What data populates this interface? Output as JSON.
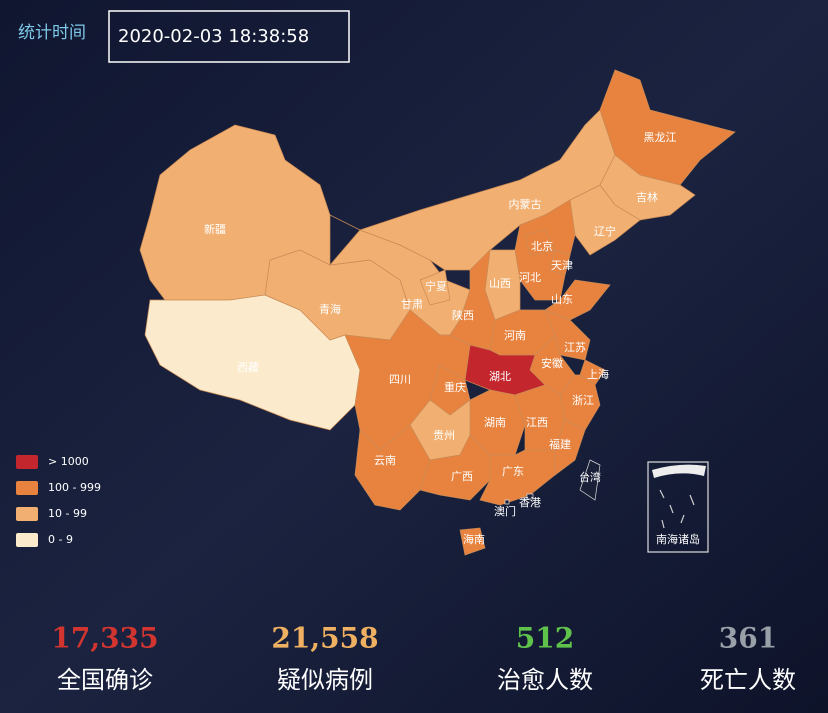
{
  "header": {
    "label": "统计时间",
    "timestamp": "2020-02-03 18:38:58"
  },
  "legend": [
    {
      "label": "> 1000",
      "color": "#c4262e"
    },
    {
      "label": "100 - 999",
      "color": "#e8833f"
    },
    {
      "label": "10 - 99",
      "color": "#f1b072"
    },
    {
      "label": "0 - 9",
      "color": "#fbeacb"
    }
  ],
  "provinces": [
    {
      "name": "新疆",
      "level": 2
    },
    {
      "name": "西藏",
      "level": 3
    },
    {
      "name": "青海",
      "level": 2
    },
    {
      "name": "甘肃",
      "level": 2
    },
    {
      "name": "宁夏",
      "level": 2
    },
    {
      "name": "内蒙古",
      "level": 2
    },
    {
      "name": "黑龙江",
      "level": 1
    },
    {
      "name": "吉林",
      "level": 2
    },
    {
      "name": "辽宁",
      "level": 2
    },
    {
      "name": "河北",
      "level": 1
    },
    {
      "name": "北京",
      "level": 1
    },
    {
      "name": "天津",
      "level": 1
    },
    {
      "name": "山西",
      "level": 2
    },
    {
      "name": "山东",
      "level": 1
    },
    {
      "name": "陕西",
      "level": 1
    },
    {
      "name": "河南",
      "level": 1
    },
    {
      "name": "江苏",
      "level": 1
    },
    {
      "name": "安徽",
      "level": 1
    },
    {
      "name": "上海",
      "level": 1
    },
    {
      "name": "浙江",
      "level": 1
    },
    {
      "name": "湖北",
      "level": 0
    },
    {
      "name": "四川",
      "level": 1
    },
    {
      "name": "重庆",
      "level": 1
    },
    {
      "name": "湖南",
      "level": 1
    },
    {
      "name": "江西",
      "level": 1
    },
    {
      "name": "福建",
      "level": 1
    },
    {
      "name": "贵州",
      "level": 2
    },
    {
      "name": "云南",
      "level": 1
    },
    {
      "name": "广西",
      "level": 1
    },
    {
      "name": "广东",
      "level": 1
    },
    {
      "name": "海南",
      "level": 1
    },
    {
      "name": "香港",
      "level": null
    },
    {
      "name": "澳门",
      "level": null
    },
    {
      "name": "台湾",
      "level": null
    }
  ],
  "inset_label": "南海诸岛",
  "stats": [
    {
      "value": "17,335",
      "label": "全国确诊",
      "color": "#d2352f"
    },
    {
      "value": "21,558",
      "label": "疑似病例",
      "color": "#efb062"
    },
    {
      "value": "512",
      "label": "治愈人数",
      "color": "#5fc24b"
    },
    {
      "value": "361",
      "label": "死亡人数",
      "color": "#9aa0a8"
    }
  ]
}
